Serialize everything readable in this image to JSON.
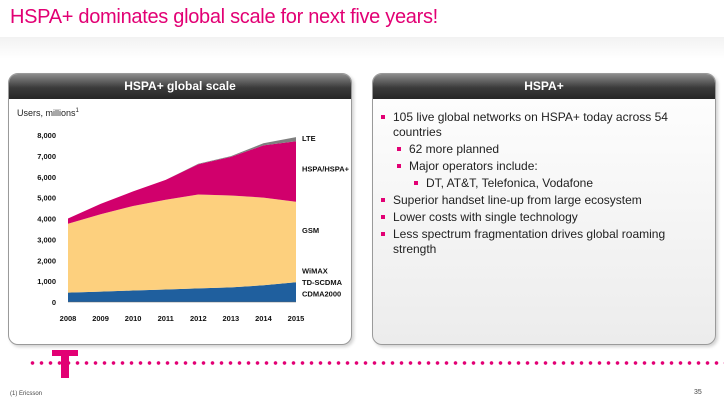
{
  "slide": {
    "title": "HSPA+ dominates global scale for next five years!",
    "footnote": "(1) Ericsson",
    "page_number": "35"
  },
  "left_panel": {
    "header": "HSPA+ global scale"
  },
  "right_panel": {
    "header": "HSPA+",
    "bullets": [
      {
        "level": 1,
        "text": "105 live global networks on HSPA+ today across 54 countries"
      },
      {
        "level": 2,
        "text": "62 more planned"
      },
      {
        "level": 2,
        "text": "Major operators include:"
      },
      {
        "level": 3,
        "text": "DT, AT&T, Telefonica, Vodafone"
      },
      {
        "level": 1,
        "text": "Superior handset line-up from large ecosystem"
      },
      {
        "level": 1,
        "text": "Lower costs with single technology"
      },
      {
        "level": 1,
        "text": "Less spectrum fragmentation drives global roaming strength"
      }
    ]
  },
  "colors": {
    "accent": "#e20074",
    "lte": "#7f7f7f",
    "hspa": "#d1006c",
    "gsm": "#fdd07e",
    "other": "#1f5f9e"
  },
  "chart_data": {
    "type": "area",
    "stacked": true,
    "ylabel": "Users, millions",
    "ylabel_sup": "1",
    "x": [
      "2008",
      "2009",
      "2010",
      "2011",
      "2012",
      "2013",
      "2014",
      "2015"
    ],
    "yticks": [
      "0",
      "1,000",
      "2,000",
      "3,000",
      "4,000",
      "5,000",
      "6,000",
      "7,000",
      "8,000"
    ],
    "ylim": [
      0,
      8000
    ],
    "grid": false,
    "series": [
      {
        "name": "WiMAX / TD-SCDMA / CDMA2000",
        "color": "#1f5f9e",
        "values": [
          450,
          500,
          550,
          600,
          650,
          700,
          800,
          950
        ]
      },
      {
        "name": "GSM",
        "color": "#fdd07e",
        "values": [
          3300,
          3700,
          4050,
          4300,
          4500,
          4400,
          4200,
          3850
        ]
      },
      {
        "name": "HSPA/HSPA+",
        "color": "#d1006c",
        "values": [
          250,
          500,
          700,
          950,
          1450,
          1850,
          2500,
          2900
        ]
      },
      {
        "name": "LTE",
        "color": "#7f7f7f",
        "values": [
          0,
          0,
          0,
          0,
          20,
          40,
          100,
          200
        ]
      }
    ],
    "right_labels": [
      {
        "text": "LTE",
        "y": 7850
      },
      {
        "text": "HSPA/HSPA+",
        "y": 6400
      },
      {
        "text": "GSM",
        "y": 3450
      },
      {
        "text": "WiMAX",
        "y": 1500
      },
      {
        "text": "TD-SCDMA",
        "y": 950
      },
      {
        "text": "CDMA2000",
        "y": 400
      }
    ]
  }
}
